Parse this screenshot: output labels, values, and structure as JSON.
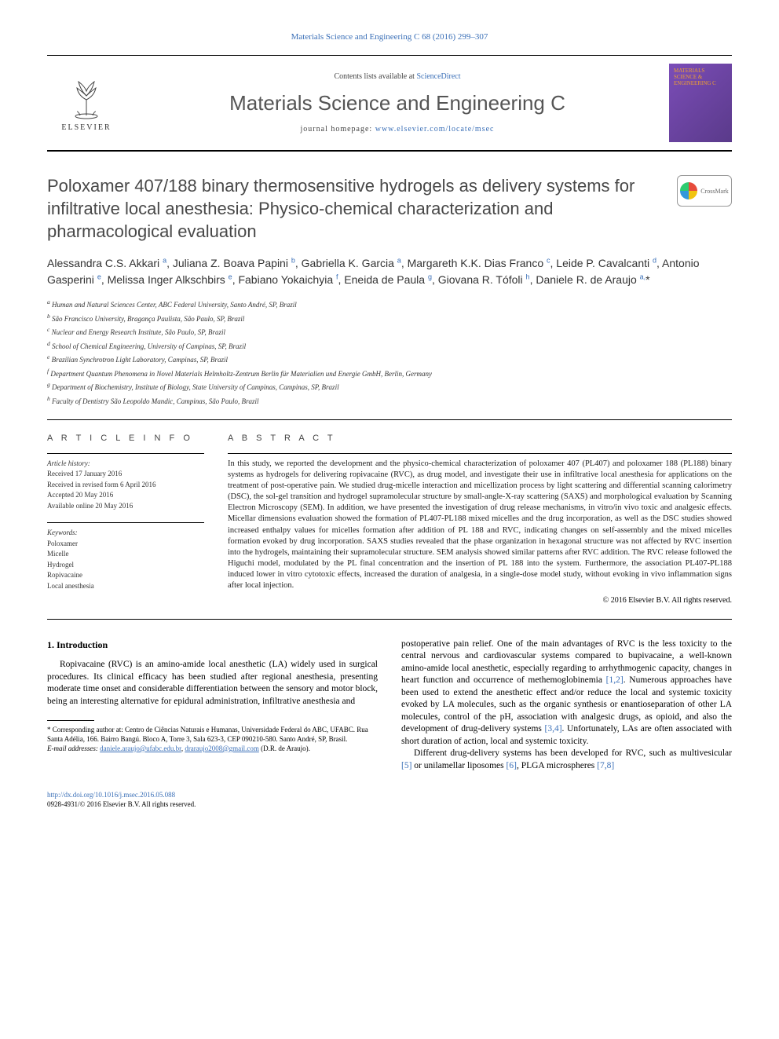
{
  "header": {
    "citation": "Materials Science and Engineering C 68 (2016) 299–307",
    "contents_prefix": "Contents lists available at ",
    "contents_link": "ScienceDirect",
    "journal_title": "Materials Science and Engineering C",
    "homepage_prefix": "journal homepage: ",
    "homepage_link": "www.elsevier.com/locate/msec",
    "publisher": "ELSEVIER",
    "cover_text": "MATERIALS SCIENCE & ENGINEERING C"
  },
  "crossmark": {
    "label": "CrossMark"
  },
  "article": {
    "title": "Poloxamer 407/188 binary thermosensitive hydrogels as delivery systems for infiltrative local anesthesia: Physico-chemical characterization and pharmacological evaluation",
    "authors_html": "Alessandra C.S. Akkari <sup>a</sup>, Juliana Z. Boava Papini <sup>b</sup>, Gabriella K. Garcia <sup>a</sup>, Margareth K.K. Dias Franco <sup>c</sup>, Leide P. Cavalcanti <sup>d</sup>, Antonio Gasperini <sup>e</sup>, Melissa Inger Alkschbirs <sup>e</sup>, Fabiano Yokaichyia <sup>f</sup>, Eneida de Paula <sup>g</sup>, Giovana R. Tófoli <sup>h</sup>, Daniele R. de Araujo <sup>a,</sup>*",
    "affiliations": [
      "a Human and Natural Sciences Center, ABC Federal University, Santo André, SP, Brazil",
      "b São Francisco University, Bragança Paulista, São Paulo, SP, Brazil",
      "c Nuclear and Energy Research Institute, São Paulo, SP, Brazil",
      "d School of Chemical Engineering, University of Campinas, SP, Brazil",
      "e Brazilian Synchrotron Light Laboratory, Campinas, SP, Brazil",
      "f Department Quantum Phenomena in Novel Materials Helmholtz-Zentrum Berlin für Materialien und Energie GmbH, Berlin, Germany",
      "g Department of Biochemistry, Institute of Biology, State University of Campinas, Campinas, SP, Brazil",
      "h Faculty of Dentistry São Leopoldo Mandic, Campinas, São Paulo, Brazil"
    ]
  },
  "info": {
    "heading_info": "A R T I C L E   I N F O",
    "heading_abstract": "A B S T R A C T",
    "history_label": "Article history:",
    "history": [
      "Received 17 January 2016",
      "Received in revised form 6 April 2016",
      "Accepted 20 May 2016",
      "Available online 20 May 2016"
    ],
    "keywords_label": "Keywords:",
    "keywords": [
      "Poloxamer",
      "Micelle",
      "Hydrogel",
      "Ropivacaine",
      "Local anesthesia"
    ]
  },
  "abstract": {
    "text": "In this study, we reported the development and the physico-chemical characterization of poloxamer 407 (PL407) and poloxamer 188 (PL188) binary systems as hydrogels for delivering ropivacaine (RVC), as drug model, and investigate their use in infiltrative local anesthesia for applications on the treatment of post-operative pain. We studied drug-micelle interaction and micellization process by light scattering and differential scanning calorimetry (DSC), the sol-gel transition and hydrogel supramolecular structure by small-angle-X-ray scattering (SAXS) and morphological evaluation by Scanning Electron Microscopy (SEM). In addition, we have presented the investigation of drug release mechanisms, in vitro/in vivo toxic and analgesic effects. Micellar dimensions evaluation showed the formation of PL407-PL188 mixed micelles and the drug incorporation, as well as the DSC studies showed increased enthalpy values for micelles formation after addition of PL 188 and RVC, indicating changes on self-assembly and the mixed micelles formation evoked by drug incorporation. SAXS studies revealed that the phase organization in hexagonal structure was not affected by RVC insertion into the hydrogels, maintaining their supramolecular structure. SEM analysis showed similar patterns after RVC addition. The RVC release followed the Higuchi model, modulated by the PL final concentration and the insertion of PL 188 into the system. Furthermore, the association PL407-PL188 induced lower in vitro cytotoxic effects, increased the duration of analgesia, in a single-dose model study, without evoking in vivo inflammation signs after local injection.",
    "copyright": "© 2016 Elsevier B.V. All rights reserved."
  },
  "body": {
    "section_heading": "1. Introduction",
    "left_p1": "Ropivacaine (RVC) is an amino-amide local anesthetic (LA) widely used in surgical procedures. Its clinical efficacy has been studied after regional anesthesia, presenting moderate time onset and considerable differentiation between the sensory and motor block, being an interesting alternative for epidural administration, infiltrative anesthesia and",
    "right_p1_pre": "postoperative pain relief. One of the main advantages of RVC is the less toxicity to the central nervous and cardiovascular systems compared to bupivacaine, a well-known amino-amide local anesthetic, especially regarding to arrhythmogenic capacity, changes in heart function and occurrence of methemoglobinemia ",
    "right_p1_ref1": "[1,2]",
    "right_p1_mid": ". Numerous approaches have been used to extend the anesthetic effect and/or reduce the local and systemic toxicity evoked by LA molecules, such as the organic synthesis or enantioseparation of other LA molecules, control of the pH, association with analgesic drugs, as opioid, and also the development of drug-delivery systems ",
    "right_p1_ref2": "[3,4]",
    "right_p1_post": ". Unfortunately, LAs are often associated with short duration of action, local and systemic toxicity.",
    "right_p2_pre": "Different drug-delivery systems has been developed for RVC, such as multivesicular ",
    "right_p2_ref1": "[5]",
    "right_p2_mid1": " or unilamellar liposomes ",
    "right_p2_ref2": "[6]",
    "right_p2_mid2": ", PLGA microspheres ",
    "right_p2_ref3": "[7,8]"
  },
  "footnotes": {
    "corresponding": "* Corresponding author at: Centro de Ciências Naturais e Humanas, Universidade Federal do ABC, UFABC. Rua Santa Adélia, 166. Bairro Bangú. Bloco A, Torre 3, Sala 623-3, CEP 090210-580. Santo André, SP, Brasil.",
    "email_label": "E-mail addresses: ",
    "email1": "daniele.araujo@ufabc.edu.br",
    "email_sep": ", ",
    "email2": "draraujo2008@gmail.com",
    "email_attr": " (D.R. de Araujo)."
  },
  "footer": {
    "doi": "http://dx.doi.org/10.1016/j.msec.2016.05.088",
    "issn_line": "0928-4931/© 2016 Elsevier B.V. All rights reserved."
  },
  "colors": {
    "link": "#3a6fb7",
    "title_gray": "#484848",
    "journal_gray": "#555555"
  }
}
